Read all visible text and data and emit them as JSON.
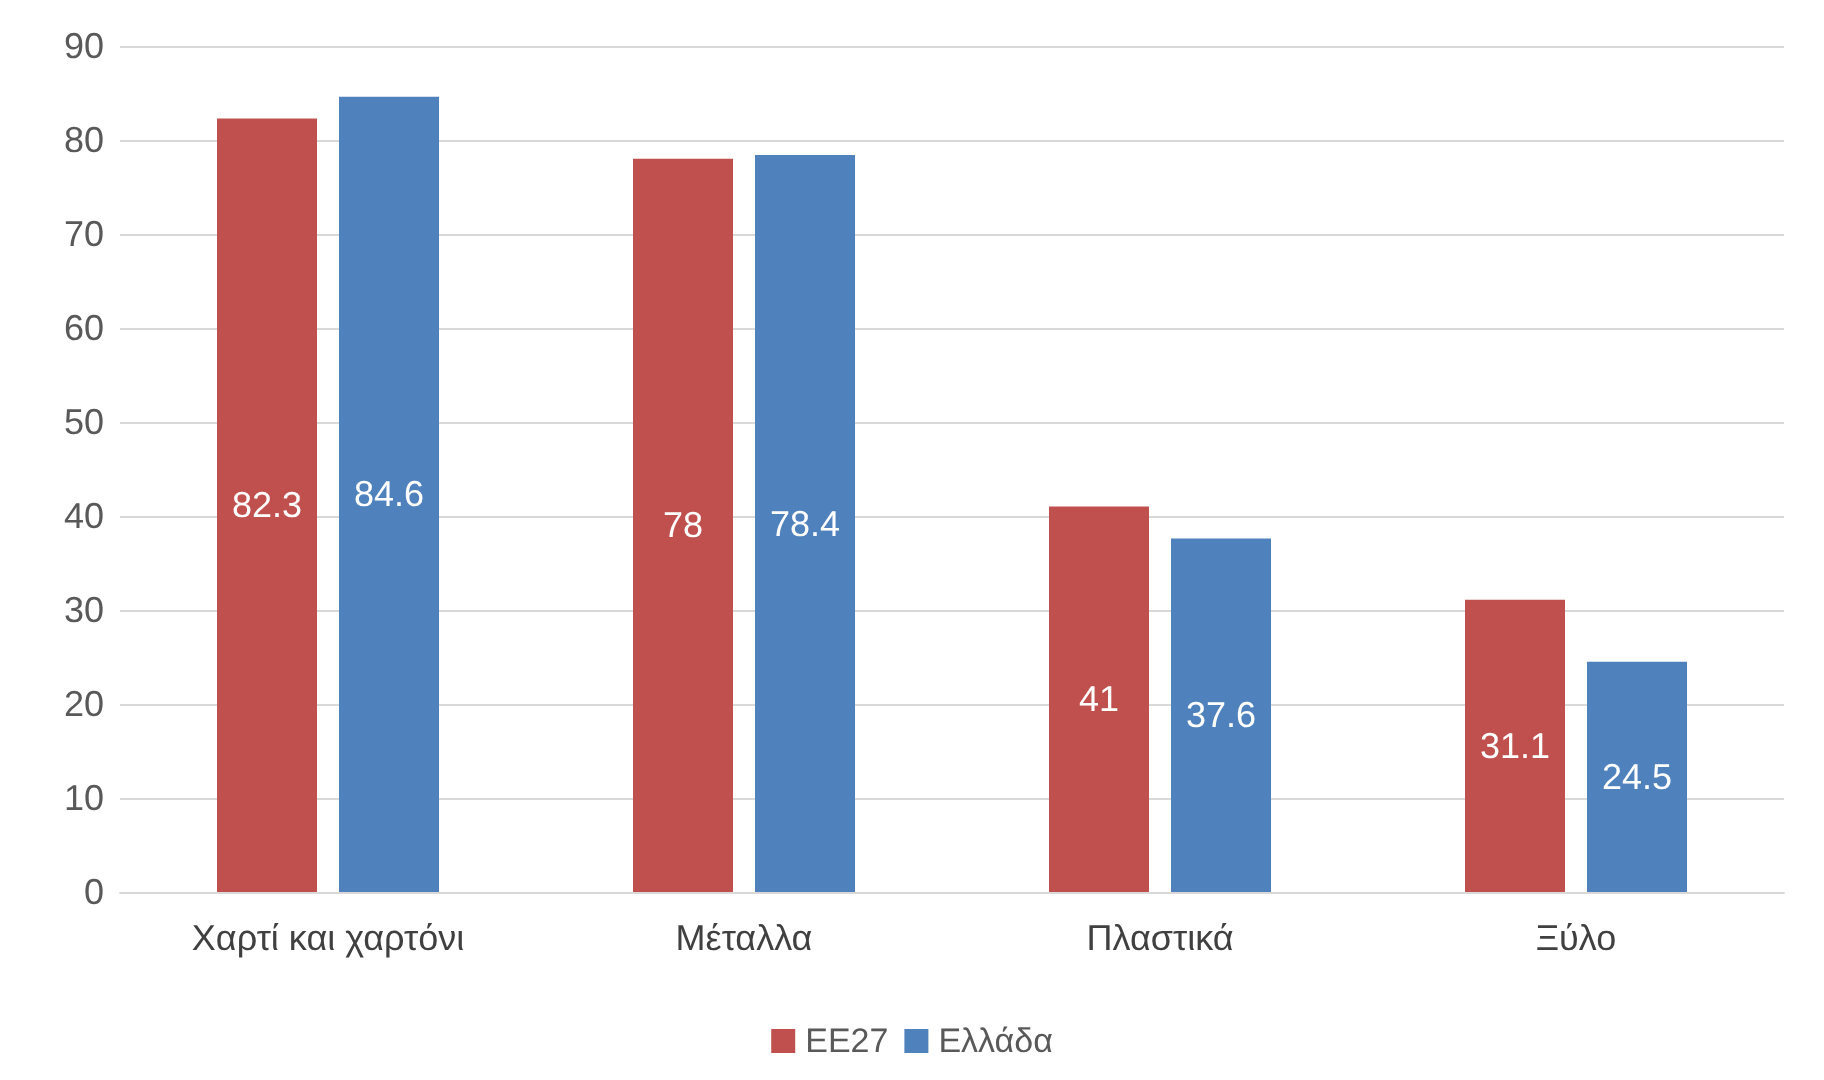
{
  "chart_data": {
    "type": "bar",
    "categories": [
      "Χαρτί και χαρτόνι",
      "Μέταλλα",
      "Πλαστικά",
      "Ξύλο"
    ],
    "series": [
      {
        "name": "ΕΕ27",
        "color": "#c0504d",
        "values": [
          82.3,
          78,
          41,
          31.1
        ]
      },
      {
        "name": "Ελλάδα",
        "color": "#4f81bd",
        "values": [
          84.6,
          78.4,
          37.6,
          24.5
        ]
      }
    ],
    "ylim": [
      0,
      90
    ],
    "yticks": [
      0,
      10,
      20,
      30,
      40,
      50,
      60,
      70,
      80,
      90
    ],
    "grid": "y",
    "legend": "bottom",
    "data_labels": true
  }
}
